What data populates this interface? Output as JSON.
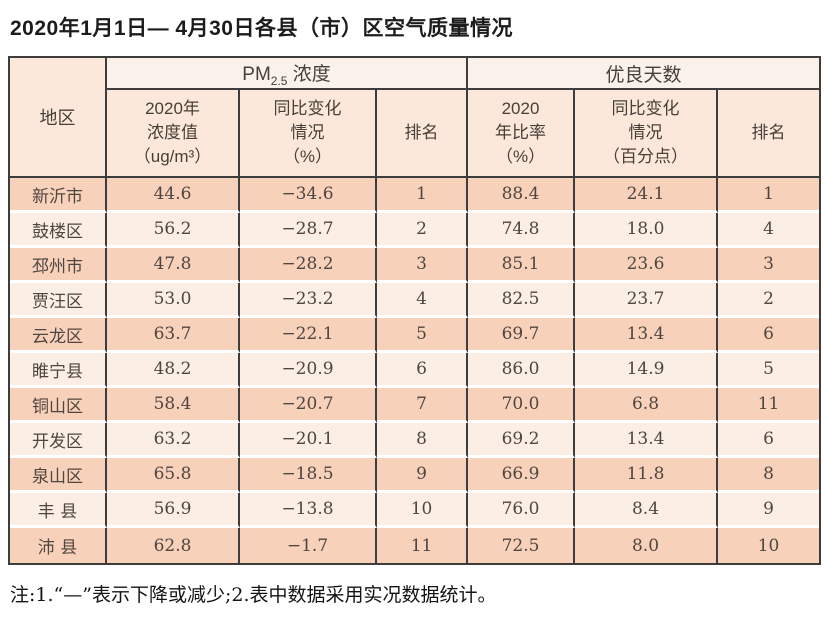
{
  "title": "2020年1月1日— 4月30日各县（市）区空气质量情况",
  "note": "注:1.“—”表示下降或减少;2.表中数据采用实况数据统计。",
  "colors": {
    "row_odd_bg": "#f8d1bb",
    "row_even_bg": "#faeee5",
    "header_bg": "#fbe8da",
    "group_header_bg": "#faf1ea",
    "border": "#3d3d3d",
    "body_text": "#4f4640",
    "header_text": "#474038"
  },
  "table": {
    "region_header": "地区",
    "groups": {
      "pm_prefix": "PM",
      "pm_sub": "2.5",
      "pm_suffix": " 浓度",
      "good_days": "优良天数"
    },
    "subheaders": {
      "pm_value": "2020年\n浓度值\n（ug/m³）",
      "pm_change": "同比变化\n情况\n（%）",
      "pm_rank": "排名",
      "good_rate": "2020\n年比率\n（%）",
      "good_change": "同比变化\n情况\n（百分点）",
      "good_rank": "排名"
    },
    "rows": [
      {
        "region": "新沂市",
        "pm_value": "44.6",
        "pm_change": "−34.6",
        "pm_rank": "1",
        "good_rate": "88.4",
        "good_change": "24.1",
        "good_rank": "1"
      },
      {
        "region": "鼓楼区",
        "pm_value": "56.2",
        "pm_change": "−28.7",
        "pm_rank": "2",
        "good_rate": "74.8",
        "good_change": "18.0",
        "good_rank": "4"
      },
      {
        "region": "邳州市",
        "pm_value": "47.8",
        "pm_change": "−28.2",
        "pm_rank": "3",
        "good_rate": "85.1",
        "good_change": "23.6",
        "good_rank": "3"
      },
      {
        "region": "贾汪区",
        "pm_value": "53.0",
        "pm_change": "−23.2",
        "pm_rank": "4",
        "good_rate": "82.5",
        "good_change": "23.7",
        "good_rank": "2"
      },
      {
        "region": "云龙区",
        "pm_value": "63.7",
        "pm_change": "−22.1",
        "pm_rank": "5",
        "good_rate": "69.7",
        "good_change": "13.4",
        "good_rank": "6"
      },
      {
        "region": "睢宁县",
        "pm_value": "48.2",
        "pm_change": "−20.9",
        "pm_rank": "6",
        "good_rate": "86.0",
        "good_change": "14.9",
        "good_rank": "5"
      },
      {
        "region": "铜山区",
        "pm_value": "58.4",
        "pm_change": "−20.7",
        "pm_rank": "7",
        "good_rate": "70.0",
        "good_change": "6.8",
        "good_rank": "11"
      },
      {
        "region": "开发区",
        "pm_value": "63.2",
        "pm_change": "−20.1",
        "pm_rank": "8",
        "good_rate": "69.2",
        "good_change": "13.4",
        "good_rank": "6"
      },
      {
        "region": "泉山区",
        "pm_value": "65.8",
        "pm_change": "−18.5",
        "pm_rank": "9",
        "good_rate": "66.9",
        "good_change": "11.8",
        "good_rank": "8"
      },
      {
        "region": "丰 县",
        "pm_value": "56.9",
        "pm_change": "−13.8",
        "pm_rank": "10",
        "good_rate": "76.0",
        "good_change": "8.4",
        "good_rank": "9"
      },
      {
        "region": "沛 县",
        "pm_value": "62.8",
        "pm_change": "−1.7",
        "pm_rank": "11",
        "good_rate": "72.5",
        "good_change": "8.0",
        "good_rank": "10"
      }
    ]
  }
}
